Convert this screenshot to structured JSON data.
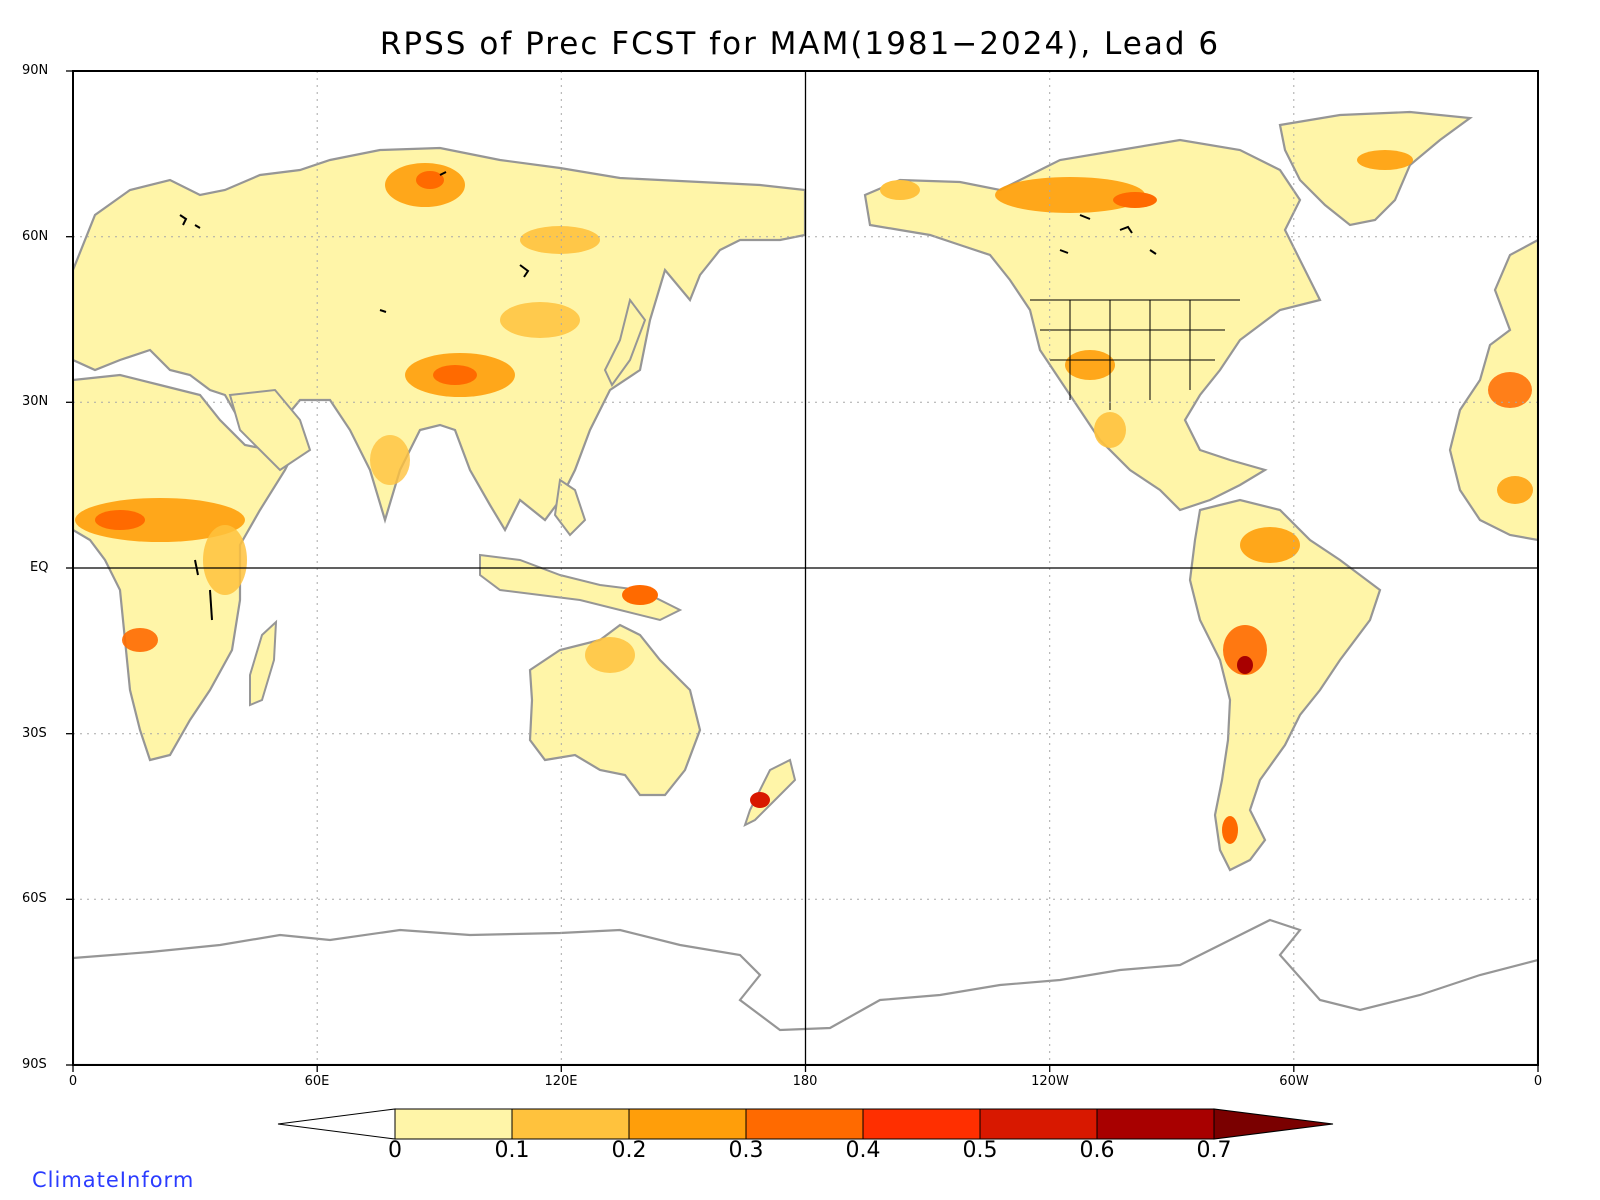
{
  "title": "RPSS of Prec FCST for MAM(1981−2024), Lead 6",
  "credit": "ClimateInform",
  "lat_labels": [
    "90N",
    "60N",
    "30N",
    "EQ",
    "30S",
    "60S",
    "90S"
  ],
  "lon_labels": [
    "0",
    "60E",
    "120E",
    "180",
    "120W",
    "60W",
    "0"
  ],
  "colorbar": {
    "labels": [
      "0",
      "0.1",
      "0.2",
      "0.3",
      "0.4",
      "0.5",
      "0.6",
      "0.7"
    ],
    "colors": [
      "#ffffff",
      "#fff5a8",
      "#ffc23d",
      "#ff9e0a",
      "#ff6a00",
      "#ff2f00",
      "#d81800",
      "#a80000",
      "#7a0000"
    ]
  },
  "colors": {
    "coast": "#969696",
    "lakes": "#000000",
    "grid": "#a8a8a8",
    "frame": "#000000"
  },
  "map_extent": {
    "lon_min": 0,
    "lon_max": 360,
    "lat_min": -90,
    "lat_max": 90
  }
}
